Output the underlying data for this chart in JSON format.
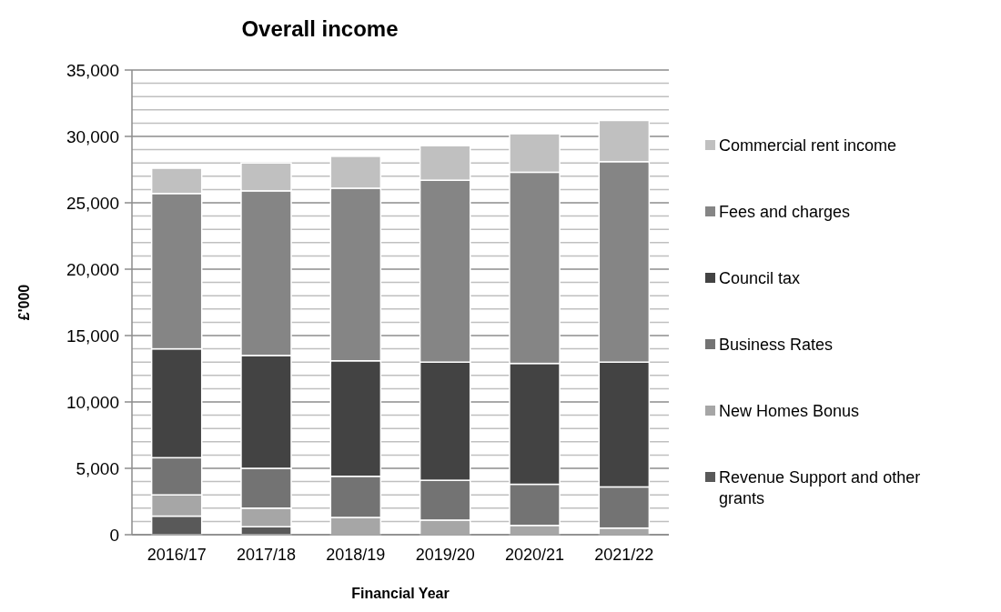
{
  "chart_data": {
    "type": "bar",
    "title": "Overall income",
    "xlabel": "Financial Year",
    "ylabel": "£'000",
    "stacked": true,
    "legend": "right",
    "grid": true,
    "categories": [
      "2016/17",
      "2017/18",
      "2018/19",
      "2019/20",
      "2020/21",
      "2021/22"
    ],
    "ylim": [
      0,
      35000
    ],
    "yticks": [
      0,
      {
        "value": 1000,
        "label": null
      },
      {
        "value": 2000,
        "label": null
      },
      {
        "value": 3000,
        "label": null
      },
      {
        "value": 4000,
        "label": null
      },
      {
        "value": 5000,
        "label": "5,000"
      },
      {
        "value": 6000,
        "label": null
      },
      {
        "value": 7000,
        "label": null
      },
      {
        "value": 8000,
        "label": null
      },
      {
        "value": 9000,
        "label": null
      },
      {
        "value": 10000,
        "label": "10,000"
      },
      {
        "value": 11000,
        "label": null
      },
      {
        "value": 12000,
        "label": null
      },
      {
        "value": 13000,
        "label": null
      },
      {
        "value": 14000,
        "label": null
      },
      {
        "value": 15000,
        "label": "15,000"
      },
      {
        "value": 16000,
        "label": null
      },
      {
        "value": 17000,
        "label": null
      },
      {
        "value": 18000,
        "label": null
      },
      {
        "value": 19000,
        "label": null
      },
      {
        "value": 20000,
        "label": "20,000"
      },
      {
        "value": 21000,
        "label": null
      },
      {
        "value": 22000,
        "label": null
      },
      {
        "value": 23000,
        "label": null
      },
      {
        "value": 24000,
        "label": null
      },
      {
        "value": 25000,
        "label": "25,000"
      },
      {
        "value": 26000,
        "label": null
      },
      {
        "value": 27000,
        "label": null
      },
      {
        "value": 28000,
        "label": null
      },
      {
        "value": 29000,
        "label": null
      },
      {
        "value": 30000,
        "label": "30,000"
      },
      {
        "value": 31000,
        "label": null
      },
      {
        "value": 32000,
        "label": null
      },
      {
        "value": 33000,
        "label": null
      },
      {
        "value": 34000,
        "label": null
      },
      {
        "value": 35000,
        "label": "35,000"
      }
    ],
    "series": [
      {
        "name": "Revenue Support and other grants",
        "color": "#595959",
        "values": [
          1400,
          600,
          0,
          0,
          0,
          0
        ]
      },
      {
        "name": "New Homes Bonus",
        "color": "#a6a6a6",
        "values": [
          1600,
          1400,
          1300,
          1100,
          700,
          500
        ]
      },
      {
        "name": "Business Rates",
        "color": "#737373",
        "values": [
          2800,
          3000,
          3100,
          3000,
          3100,
          3100
        ]
      },
      {
        "name": "Council tax",
        "color": "#434343",
        "values": [
          8200,
          8500,
          8700,
          8900,
          9100,
          9400
        ]
      },
      {
        "name": "Fees and charges",
        "color": "#858585",
        "values": [
          11700,
          12400,
          13000,
          13700,
          14400,
          15100
        ]
      },
      {
        "name": "Commercial rent income",
        "color": "#c0c0c0",
        "values": [
          1900,
          2100,
          2400,
          2600,
          2900,
          3100
        ]
      }
    ]
  }
}
